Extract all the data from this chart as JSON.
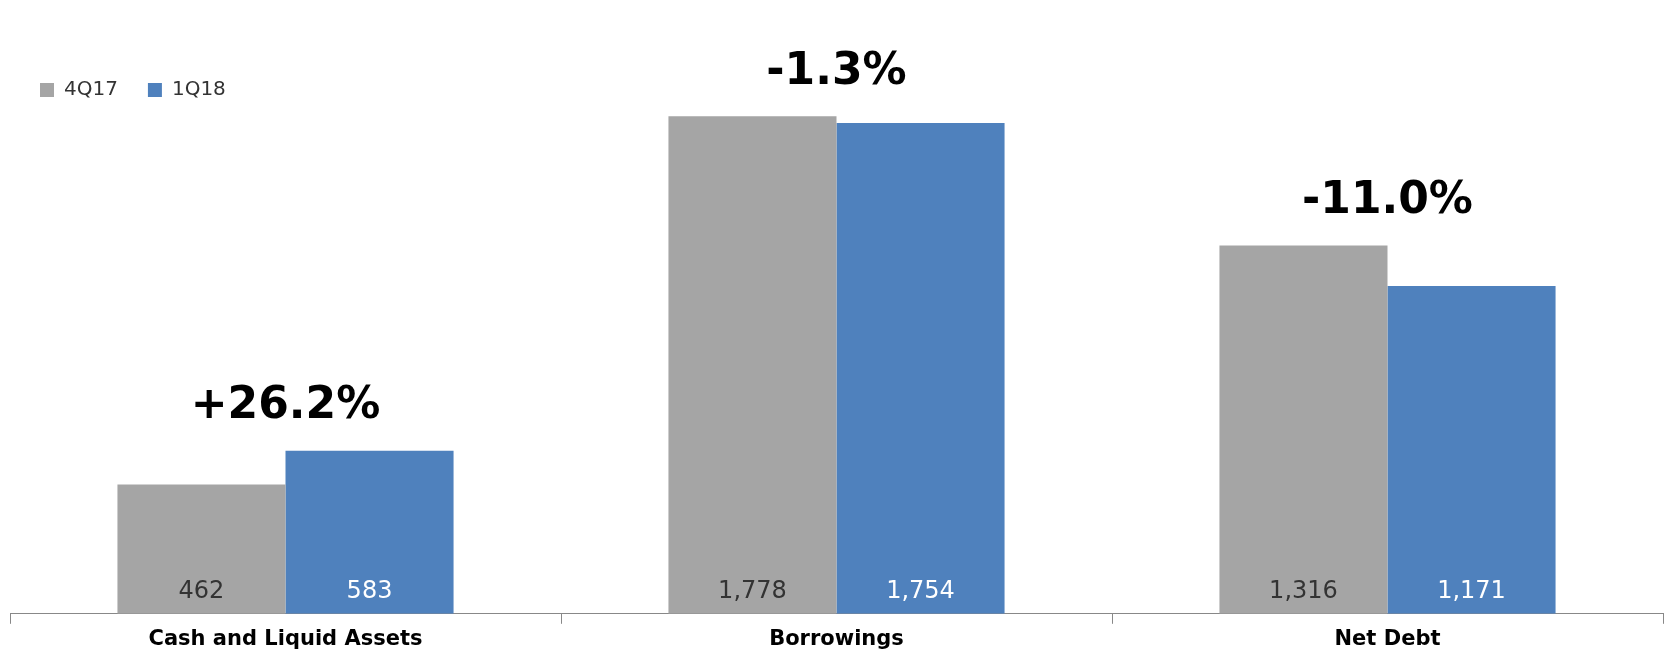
{
  "chart_data": {
    "type": "bar",
    "categories": [
      "Cash and Liquid Assets",
      "Borrowings",
      "Net Debt"
    ],
    "series": [
      {
        "name": "4Q17",
        "color": "#a5a5a5",
        "values": [
          462,
          1778,
          1316
        ],
        "value_labels": [
          "462",
          "1,778",
          "1,316"
        ]
      },
      {
        "name": "1Q18",
        "color": "#4f81bd",
        "values": [
          583,
          1754,
          1171
        ],
        "value_labels": [
          "583",
          "1,754",
          "1,171"
        ]
      }
    ],
    "legend": "top left",
    "grid": false,
    "annotations": [
      {
        "text": "+26.2%",
        "x": "Cash and Liquid Assets",
        "y": 583
      },
      {
        "text": "-1.3%",
        "x": "Borrowings",
        "y": 1778
      },
      {
        "text": "-11.0%",
        "x": "Net Debt",
        "y": 1316
      }
    ]
  }
}
